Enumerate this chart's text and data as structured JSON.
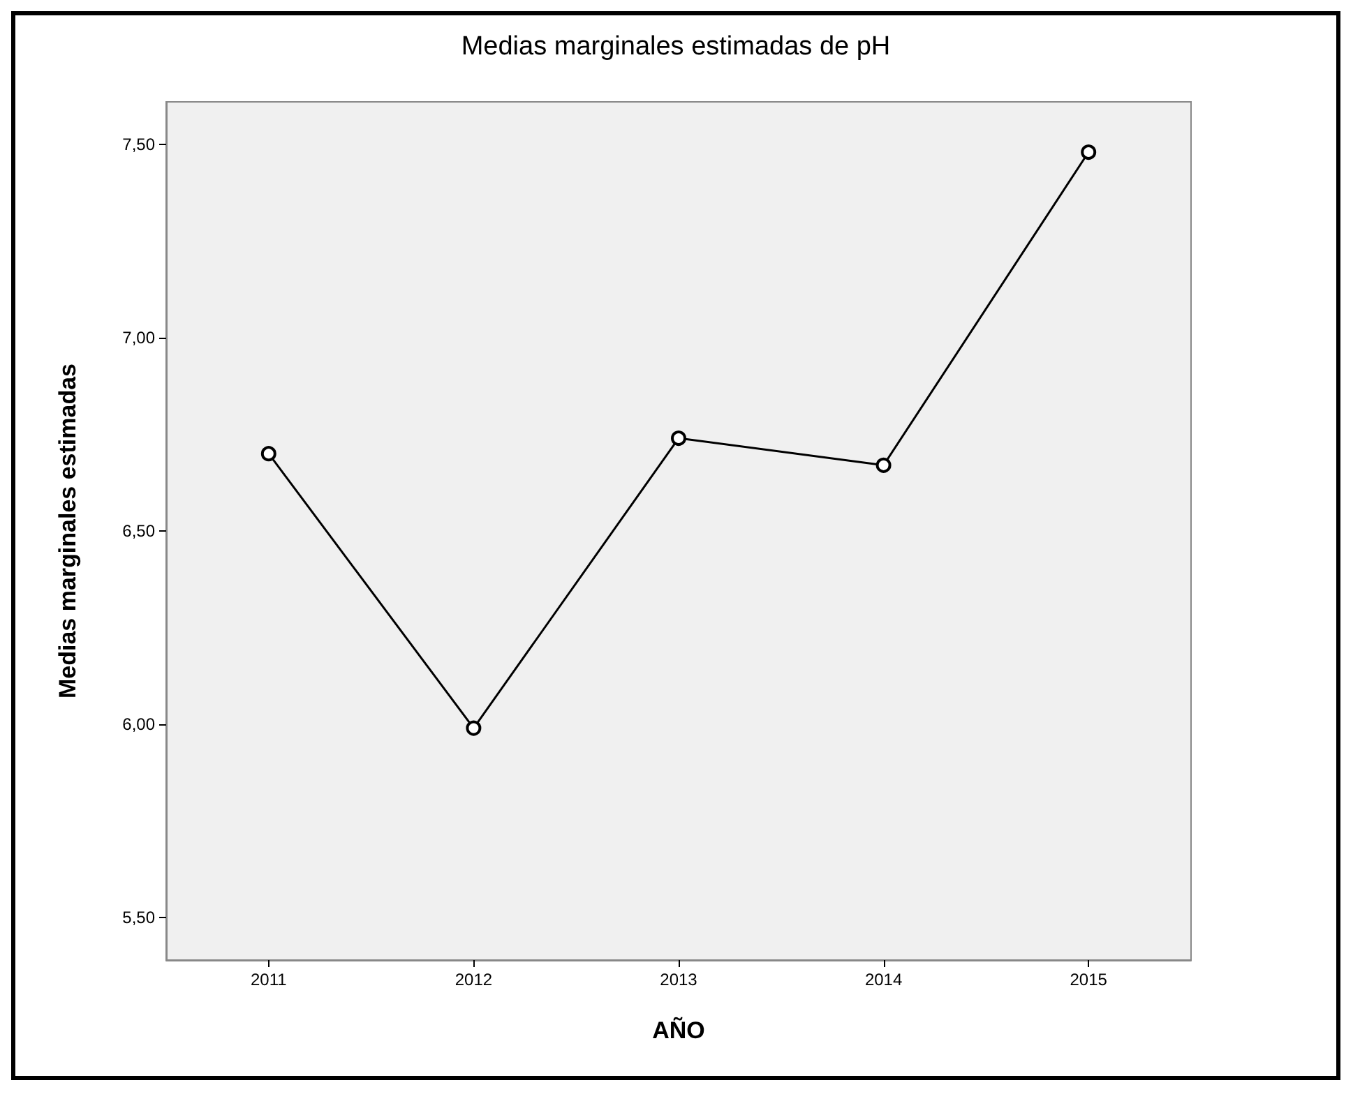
{
  "chart_data": {
    "type": "line",
    "title": "Medias marginales estimadas de pH",
    "xlabel": "AÑO",
    "ylabel": "Medias marginales estimadas",
    "categories": [
      "2011",
      "2012",
      "2013",
      "2014",
      "2015"
    ],
    "series": [
      {
        "color": "#000000",
        "values": [
          6.7,
          5.99,
          6.74,
          6.67,
          7.48
        ]
      }
    ],
    "ylim": [
      5.39,
      7.61
    ],
    "yticks": [
      {
        "value": 5.5,
        "label": "5,50"
      },
      {
        "value": 6,
        "label": "6,00"
      },
      {
        "value": 6.5,
        "label": "6,50"
      },
      {
        "value": 7,
        "label": "7,00"
      },
      {
        "value": 7.5,
        "label": "7,50"
      }
    ],
    "grid": false,
    "marker": "circle",
    "line_style": "solid"
  }
}
